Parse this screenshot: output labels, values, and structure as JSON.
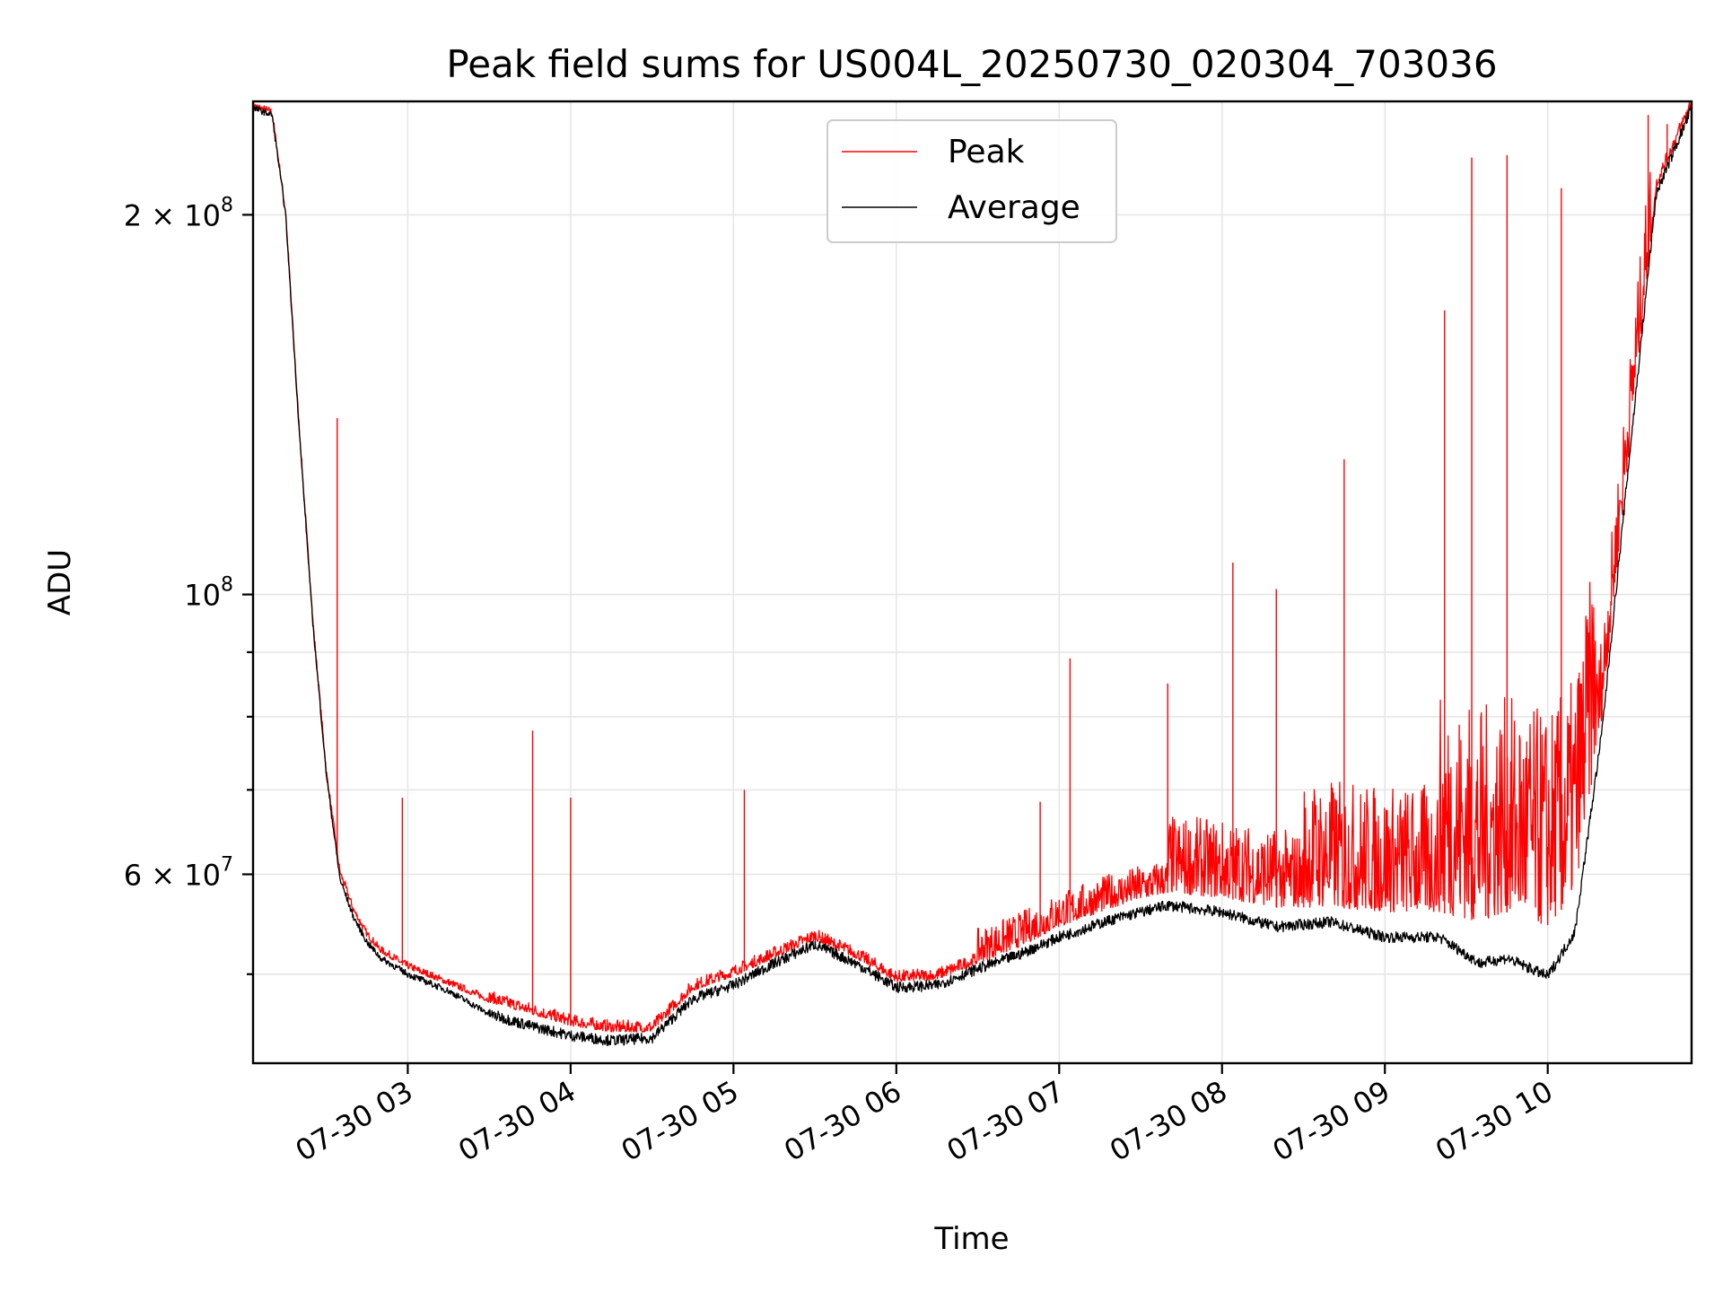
{
  "chart_data": {
    "type": "line",
    "title": "Peak field sums for US004L_20250730_020304_703036",
    "xlabel": "Time",
    "ylabel": "ADU",
    "yscale": "log",
    "ylim": [
      42500000,
      246000000
    ],
    "xlim": [
      "07-30 02:03",
      "07-30 10:53"
    ],
    "grid": true,
    "legend": "top-center",
    "x_ticks": [
      {
        "value": "07-30 03:00",
        "label": "07-30 03"
      },
      {
        "value": "07-30 04:00",
        "label": "07-30 04"
      },
      {
        "value": "07-30 05:00",
        "label": "07-30 05"
      },
      {
        "value": "07-30 06:00",
        "label": "07-30 06"
      },
      {
        "value": "07-30 07:00",
        "label": "07-30 07"
      },
      {
        "value": "07-30 08:00",
        "label": "07-30 08"
      },
      {
        "value": "07-30 09:00",
        "label": "07-30 09"
      },
      {
        "value": "07-30 10:00",
        "label": "07-30 10"
      }
    ],
    "y_ticks": [
      {
        "value": 60000000,
        "base": "6 × 10",
        "exp": "7"
      },
      {
        "value": 100000000,
        "base": "10",
        "exp": "8"
      },
      {
        "value": 200000000,
        "base": "2 × 10",
        "exp": "8"
      }
    ],
    "y_minor_ticks": [
      50000000,
      70000000,
      80000000,
      90000000
    ],
    "series": [
      {
        "name": "Peak",
        "color": "#ff0000",
        "x": [
          "07-30 02:03",
          "07-30 02:10",
          "07-30 02:15",
          "07-30 02:20",
          "07-30 02:25",
          "07-30 02:30",
          "07-30 02:35",
          "07-30 02:40",
          "07-30 02:45",
          "07-30 02:50",
          "07-30 03:00",
          "07-30 03:15",
          "07-30 03:30",
          "07-30 03:45",
          "07-30 04:00",
          "07-30 04:15",
          "07-30 04:30",
          "07-30 04:45",
          "07-30 05:00",
          "07-30 05:15",
          "07-30 05:30",
          "07-30 05:45",
          "07-30 06:00",
          "07-30 06:15",
          "07-30 06:30",
          "07-30 06:45",
          "07-30 07:00",
          "07-30 07:20",
          "07-30 07:40",
          "07-30 08:00",
          "07-30 08:20",
          "07-30 08:40",
          "07-30 09:00",
          "07-30 09:20",
          "07-30 09:35",
          "07-30 09:45",
          "07-30 10:00",
          "07-30 10:10",
          "07-30 10:20",
          "07-30 10:30",
          "07-30 10:40",
          "07-30 10:53"
        ],
        "values": [
          243000000,
          240000000,
          200000000,
          135000000,
          95000000,
          72000000,
          60000000,
          56000000,
          53500000,
          52000000,
          50500000,
          49000000,
          47500000,
          46500000,
          45500000,
          45000000,
          45000000,
          48500000,
          49800000,
          51500000,
          53200000,
          51500000,
          49300000,
          49500000,
          51000000,
          52500000,
          54500000,
          56500000,
          58000000,
          57500000,
          56500000,
          56500000,
          56000000,
          56000000,
          55000000,
          56000000,
          54500000,
          58000000,
          80000000,
          130000000,
          210000000,
          244000000
        ],
        "spikes": [
          {
            "x": "07-30 02:34",
            "value": 138000000
          },
          {
            "x": "07-30 02:58",
            "value": 69000000
          },
          {
            "x": "07-30 03:46",
            "value": 78000000
          },
          {
            "x": "07-30 04:00",
            "value": 69000000
          },
          {
            "x": "07-30 05:04",
            "value": 70000000
          },
          {
            "x": "07-30 06:53",
            "value": 68500000
          },
          {
            "x": "07-30 07:04",
            "value": 89000000
          },
          {
            "x": "07-30 07:40",
            "value": 85000000
          },
          {
            "x": "07-30 08:04",
            "value": 106000000
          },
          {
            "x": "07-30 08:20",
            "value": 101000000
          },
          {
            "x": "07-30 08:45",
            "value": 128000000
          },
          {
            "x": "07-30 09:22",
            "value": 168000000
          },
          {
            "x": "07-30 09:32",
            "value": 222000000
          },
          {
            "x": "07-30 09:45",
            "value": 223000000
          },
          {
            "x": "07-30 10:05",
            "value": 210000000
          },
          {
            "x": "07-30 10:37",
            "value": 240000000
          },
          {
            "x": "07-30 10:44",
            "value": 236000000
          }
        ]
      },
      {
        "name": "Average",
        "color": "#000000",
        "x": [
          "07-30 02:03",
          "07-30 02:10",
          "07-30 02:15",
          "07-30 02:20",
          "07-30 02:25",
          "07-30 02:30",
          "07-30 02:35",
          "07-30 02:40",
          "07-30 02:45",
          "07-30 02:50",
          "07-30 03:00",
          "07-30 03:15",
          "07-30 03:30",
          "07-30 03:45",
          "07-30 04:00",
          "07-30 04:15",
          "07-30 04:30",
          "07-30 04:45",
          "07-30 05:00",
          "07-30 05:15",
          "07-30 05:30",
          "07-30 05:45",
          "07-30 06:00",
          "07-30 06:15",
          "07-30 06:30",
          "07-30 06:45",
          "07-30 07:00",
          "07-30 07:20",
          "07-30 07:40",
          "07-30 08:00",
          "07-30 08:20",
          "07-30 08:40",
          "07-30 09:00",
          "07-30 09:20",
          "07-30 09:35",
          "07-30 09:45",
          "07-30 10:00",
          "07-30 10:10",
          "07-30 10:20",
          "07-30 10:30",
          "07-30 10:40",
          "07-30 10:53"
        ],
        "values": [
          243000000,
          240000000,
          200000000,
          135000000,
          95000000,
          72000000,
          59500000,
          55500000,
          53000000,
          51500000,
          50000000,
          48500000,
          46500000,
          45500000,
          44700000,
          44300000,
          44500000,
          47800000,
          49000000,
          51000000,
          52800000,
          51000000,
          48800000,
          49000000,
          50500000,
          51800000,
          53500000,
          55300000,
          56700000,
          56000000,
          54500000,
          55000000,
          53500000,
          53500000,
          51000000,
          51500000,
          49800000,
          54000000,
          78000000,
          128000000,
          208000000,
          243000000
        ]
      }
    ]
  }
}
